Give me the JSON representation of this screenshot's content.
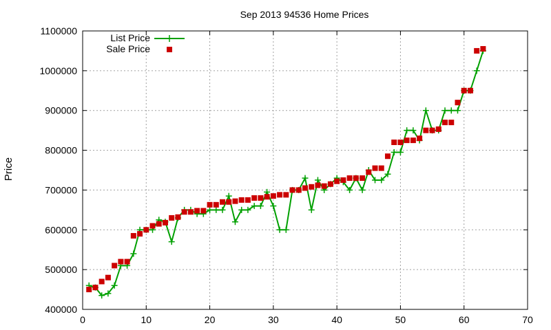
{
  "chart_data": {
    "type": "line",
    "title": "Sep 2013 94536 Home Prices",
    "xlabel": "",
    "ylabel": "Price",
    "xlim": [
      0,
      70
    ],
    "ylim": [
      400000,
      1100000
    ],
    "xticks": [
      0,
      10,
      20,
      30,
      40,
      50,
      60,
      70
    ],
    "yticks": [
      400000,
      500000,
      600000,
      700000,
      800000,
      900000,
      1000000,
      1100000
    ],
    "grid": true,
    "legend_position": "top-left",
    "series": [
      {
        "name": "List Price",
        "style": "line-plus",
        "color": "#00a000",
        "x": [
          1,
          2,
          3,
          4,
          5,
          6,
          7,
          8,
          9,
          10,
          11,
          12,
          13,
          14,
          15,
          16,
          17,
          18,
          19,
          20,
          21,
          22,
          23,
          24,
          25,
          26,
          27,
          28,
          29,
          30,
          31,
          32,
          33,
          34,
          35,
          36,
          37,
          38,
          39,
          40,
          41,
          42,
          43,
          44,
          45,
          46,
          47,
          48,
          49,
          50,
          51,
          52,
          53,
          54,
          55,
          56,
          57,
          58,
          59,
          60,
          61,
          62,
          63
        ],
        "y": [
          460000,
          455000,
          435000,
          440000,
          460000,
          510000,
          510000,
          540000,
          600000,
          600000,
          600000,
          625000,
          620000,
          570000,
          630000,
          650000,
          650000,
          640000,
          640000,
          650000,
          650000,
          650000,
          685000,
          620000,
          650000,
          650000,
          660000,
          660000,
          695000,
          660000,
          600000,
          600000,
          700000,
          700000,
          730000,
          650000,
          725000,
          700000,
          715000,
          730000,
          720000,
          700000,
          730000,
          700000,
          750000,
          725000,
          725000,
          740000,
          795000,
          795000,
          850000,
          850000,
          825000,
          900000,
          850000,
          850000,
          900000,
          900000,
          900000,
          950000,
          950000,
          1000000,
          1050000
        ]
      },
      {
        "name": "Sale Price",
        "style": "square",
        "color": "#cc0000",
        "x": [
          1,
          2,
          3,
          4,
          5,
          6,
          7,
          8,
          9,
          10,
          11,
          12,
          13,
          14,
          15,
          16,
          17,
          18,
          19,
          20,
          21,
          22,
          23,
          24,
          25,
          26,
          27,
          28,
          29,
          30,
          31,
          32,
          33,
          34,
          35,
          36,
          37,
          38,
          39,
          40,
          41,
          42,
          43,
          44,
          45,
          46,
          47,
          48,
          49,
          50,
          51,
          52,
          53,
          54,
          55,
          56,
          57,
          58,
          59,
          60,
          61,
          62,
          63
        ],
        "y": [
          450000,
          455000,
          470000,
          480000,
          510000,
          520000,
          520000,
          585000,
          590000,
          600000,
          610000,
          615000,
          618000,
          630000,
          632000,
          645000,
          645000,
          648000,
          648000,
          663000,
          663000,
          670000,
          670000,
          672000,
          675000,
          675000,
          680000,
          680000,
          683000,
          685000,
          688000,
          688000,
          700000,
          700000,
          705000,
          708000,
          712000,
          710000,
          715000,
          722000,
          725000,
          730000,
          730000,
          730000,
          745000,
          755000,
          755000,
          785000,
          820000,
          820000,
          825000,
          825000,
          830000,
          850000,
          850000,
          853000,
          870000,
          870000,
          920000,
          950000,
          950000,
          1050000,
          1055000
        ]
      }
    ]
  }
}
